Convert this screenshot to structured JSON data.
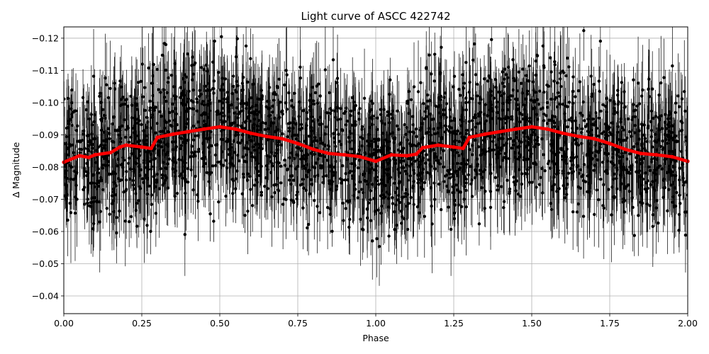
{
  "chart_data": {
    "type": "scatter",
    "title": "Light curve of ASCC 422742",
    "xlabel": "Phase",
    "ylabel": "Δ Magnitude",
    "xlim": [
      0.0,
      2.0
    ],
    "ylim": [
      -0.0345,
      -0.1235
    ],
    "y_inverted": true,
    "grid": true,
    "x_ticks": [
      0.0,
      0.25,
      0.5,
      0.75,
      1.0,
      1.25,
      1.5,
      1.75,
      2.0
    ],
    "x_tick_labels": [
      "0.00",
      "0.25",
      "0.50",
      "0.75",
      "1.00",
      "1.25",
      "1.50",
      "1.75",
      "2.00"
    ],
    "y_ticks": [
      -0.04,
      -0.05,
      -0.06,
      -0.07,
      -0.08,
      -0.09,
      -0.1,
      -0.11,
      -0.12
    ],
    "y_tick_labels": [
      "−0.04",
      "−0.05",
      "−0.06",
      "−0.07",
      "−0.08",
      "−0.09",
      "−0.10",
      "−0.11",
      "−0.12"
    ],
    "series": [
      {
        "kind": "observations_with_error_bars",
        "color": "#000000",
        "approx_center": -0.088,
        "approx_scatter_range": [
          -0.0345,
          -0.1235
        ]
      },
      {
        "kind": "binned_curve",
        "color": "#ff0000",
        "x": [
          0.0,
          0.05,
          0.08,
          0.1,
          0.15,
          0.18,
          0.2,
          0.25,
          0.28,
          0.3,
          0.35,
          0.4,
          0.45,
          0.5,
          0.55,
          0.6,
          0.65,
          0.7,
          0.75,
          0.8,
          0.85,
          0.9,
          0.95,
          1.0,
          1.05,
          1.1,
          1.13,
          1.15,
          1.2,
          1.25,
          1.28,
          1.3,
          1.35,
          1.4,
          1.45,
          1.5,
          1.55,
          1.6,
          1.65,
          1.7,
          1.75,
          1.8,
          1.85,
          1.9,
          1.95,
          2.0
        ],
        "y": [
          -0.0815,
          -0.0835,
          -0.083,
          -0.0838,
          -0.0845,
          -0.0862,
          -0.0868,
          -0.0862,
          -0.0858,
          -0.0892,
          -0.0902,
          -0.091,
          -0.0918,
          -0.0925,
          -0.0918,
          -0.0905,
          -0.0895,
          -0.0888,
          -0.0873,
          -0.0855,
          -0.0842,
          -0.0838,
          -0.0832,
          -0.0818,
          -0.0838,
          -0.0835,
          -0.084,
          -0.086,
          -0.0868,
          -0.0862,
          -0.0858,
          -0.0892,
          -0.0902,
          -0.091,
          -0.0918,
          -0.0925,
          -0.0918,
          -0.0905,
          -0.0895,
          -0.0888,
          -0.0873,
          -0.0855,
          -0.0842,
          -0.0838,
          -0.0832,
          -0.0818
        ]
      }
    ]
  }
}
